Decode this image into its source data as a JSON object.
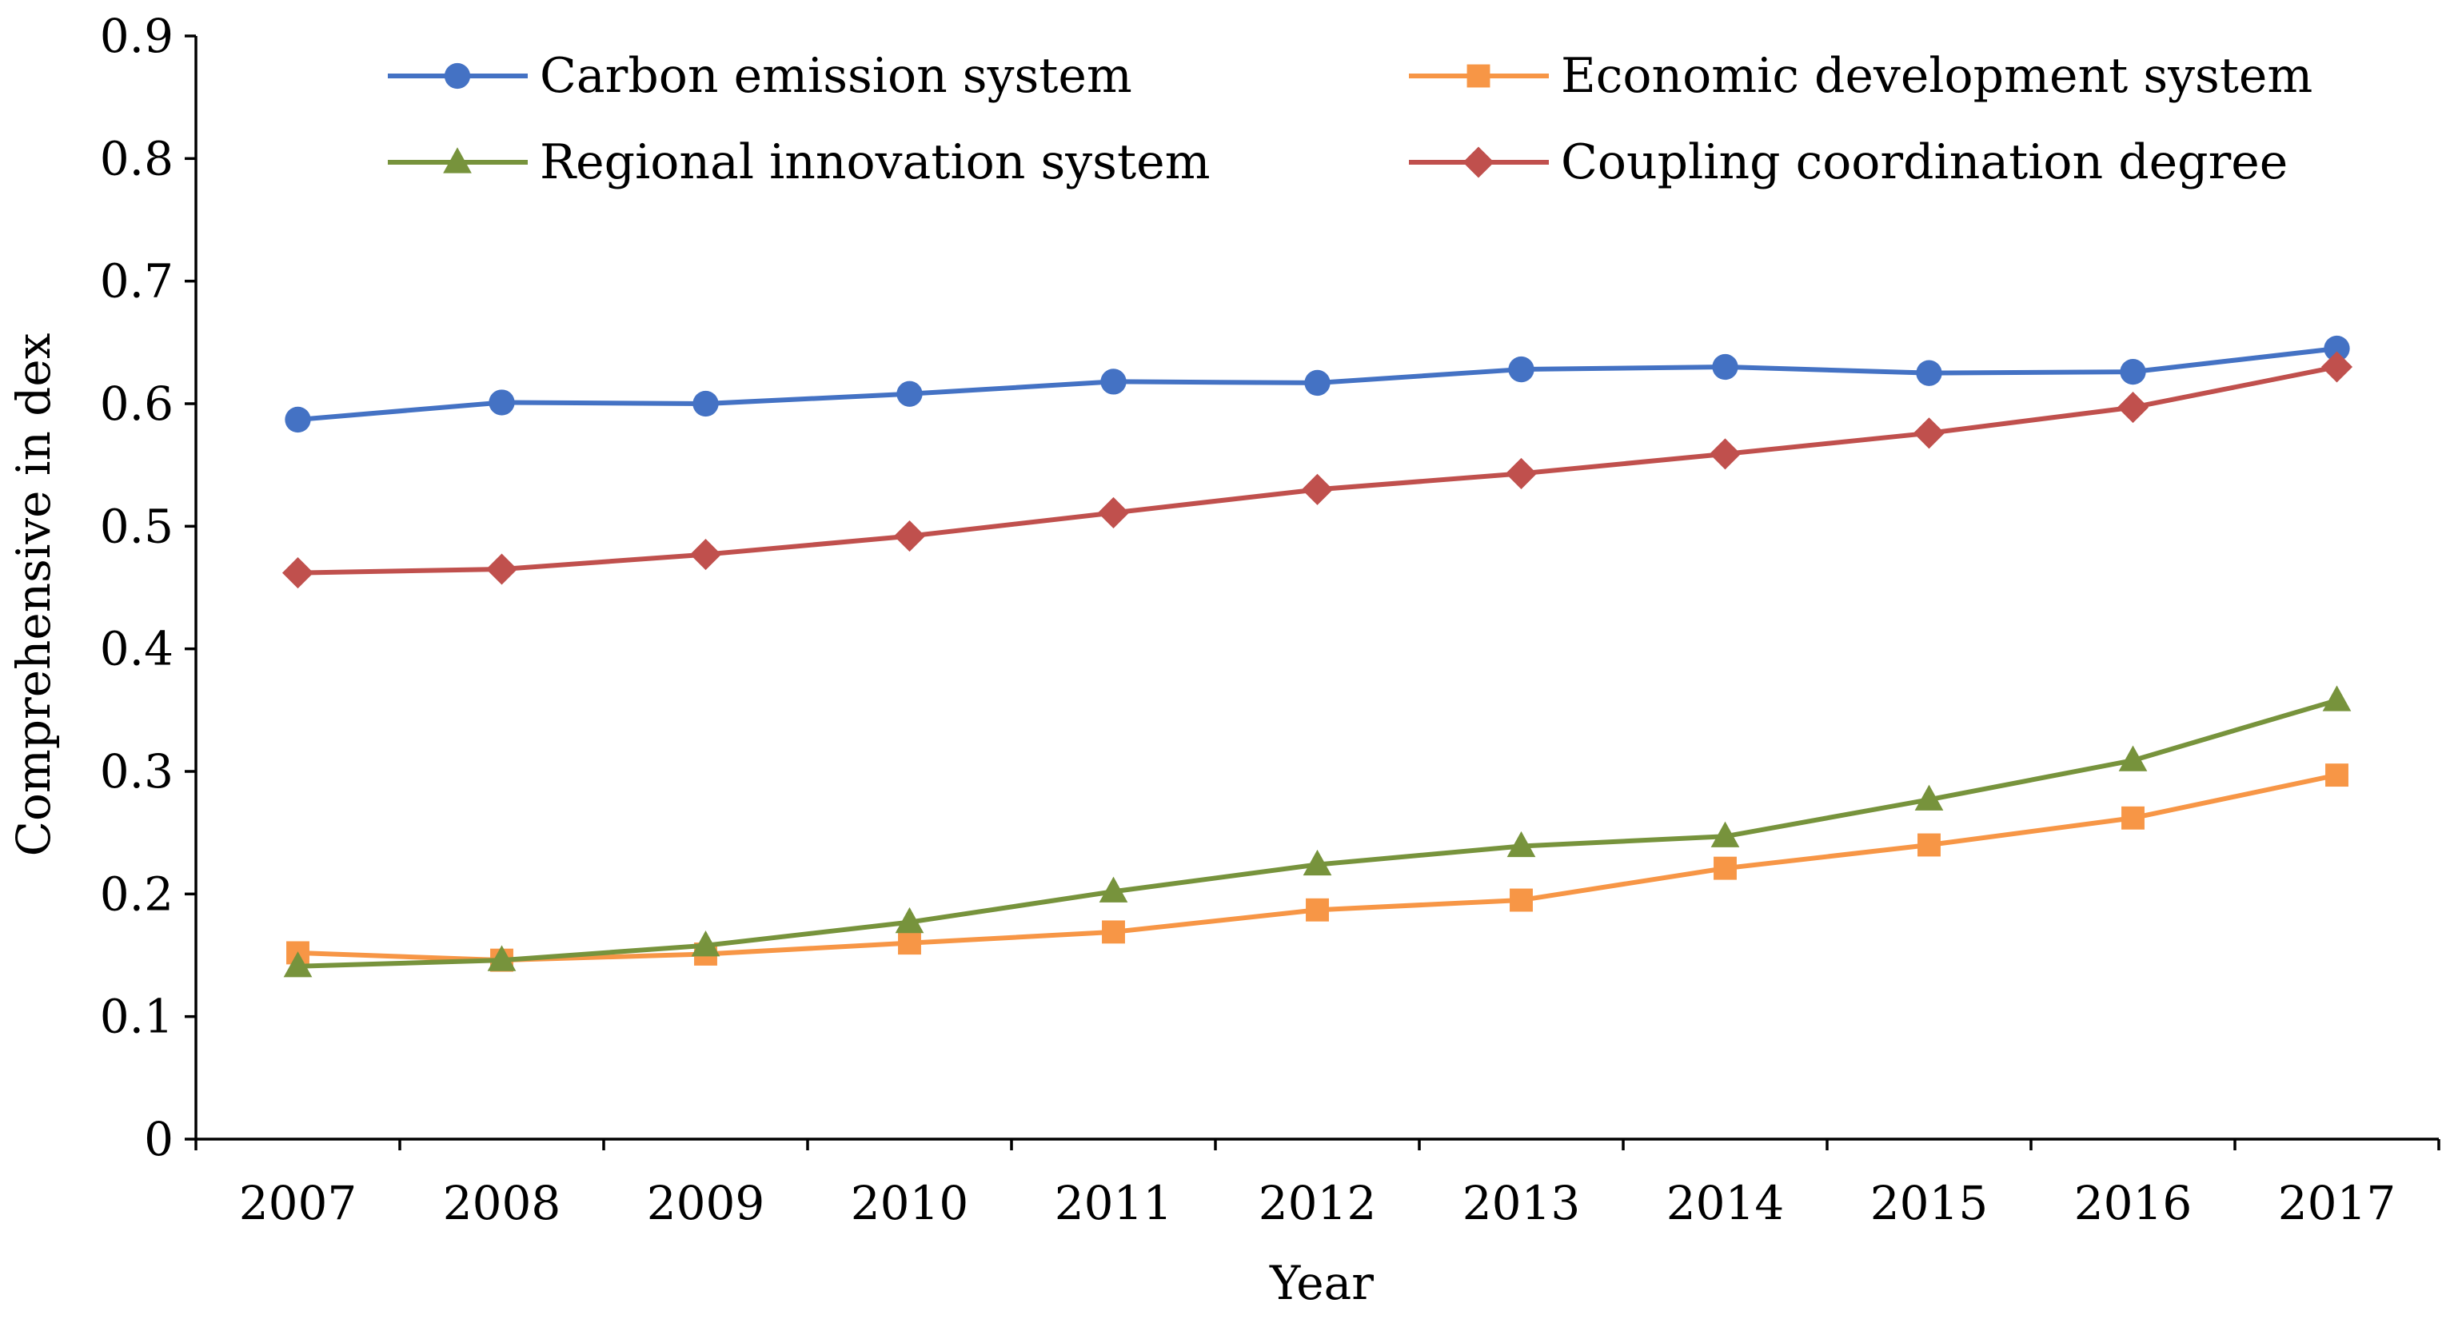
{
  "chart_data": {
    "type": "line",
    "x": [
      "2007",
      "2008",
      "2009",
      "2010",
      "2011",
      "2012",
      "2013",
      "2014",
      "2015",
      "2016",
      "2017"
    ],
    "xlabel": "Year",
    "ylabel": "Comprehensive in dex",
    "ylim": [
      0,
      0.9
    ],
    "yticks": [
      "0",
      "0.1",
      "0.2",
      "0.3",
      "0.4",
      "0.5",
      "0.6",
      "0.7",
      "0.8",
      "0.9"
    ],
    "grid": false,
    "legend_position": "top",
    "series": [
      {
        "name": "Carbon emission system",
        "color": "#4472C4",
        "marker": "circle",
        "values": [
          0.587,
          0.601,
          0.6,
          0.608,
          0.618,
          0.617,
          0.628,
          0.63,
          0.625,
          0.626,
          0.645
        ]
      },
      {
        "name": "Economic development system",
        "color": "#F79646",
        "marker": "square",
        "values": [
          0.152,
          0.146,
          0.151,
          0.16,
          0.169,
          0.187,
          0.195,
          0.221,
          0.24,
          0.262,
          0.297
        ]
      },
      {
        "name": "Regional innovation system",
        "color": "#77933C",
        "marker": "triangle",
        "values": [
          0.141,
          0.146,
          0.158,
          0.177,
          0.202,
          0.224,
          0.239,
          0.247,
          0.277,
          0.309,
          0.358
        ]
      },
      {
        "name": "Coupling coordination degree",
        "color": "#C0504D",
        "marker": "diamond",
        "values": [
          0.462,
          0.465,
          0.477,
          0.492,
          0.511,
          0.53,
          0.543,
          0.559,
          0.576,
          0.597,
          0.63
        ]
      }
    ]
  }
}
